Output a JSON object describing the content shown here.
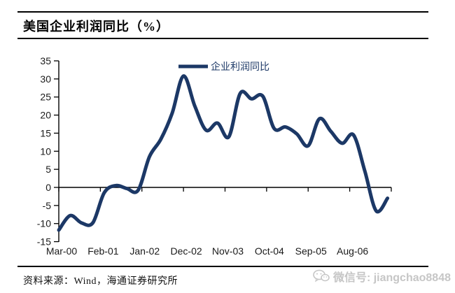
{
  "header": {
    "title": "美国企业利润同比（%）"
  },
  "legend": {
    "label": "企业利润同比"
  },
  "chart_data": {
    "type": "line",
    "title": "美国企业利润同比（%）",
    "xlabel": "",
    "ylabel": "",
    "ylim": [
      -15,
      35
    ],
    "yticks": [
      35,
      30,
      25,
      20,
      15,
      10,
      5,
      0,
      -5,
      -10,
      -15
    ],
    "xtick_labels": [
      "Mar-00",
      "Feb-01",
      "Jan-02",
      "Dec-02",
      "Nov-03",
      "Oct-04",
      "Sep-05",
      "Aug-06"
    ],
    "months_per_xtick": 11,
    "grid": false,
    "legend_position": "top-center",
    "line_color": "#1c3866",
    "axis_color": "#000000",
    "tick_text_color": "#1a1a1a",
    "series": [
      {
        "name": "企业利润同比",
        "x": [
          "Mar-00",
          "Jun-00",
          "Sep-00",
          "Dec-00",
          "Mar-01",
          "Jun-01",
          "Sep-01",
          "Dec-01",
          "Mar-02",
          "Jun-02",
          "Sep-02",
          "Dec-02",
          "Mar-03",
          "Jun-03",
          "Sep-03",
          "Dec-03",
          "Mar-04",
          "Jun-04",
          "Sep-04",
          "Dec-04",
          "Mar-05",
          "Jun-05",
          "Sep-05",
          "Dec-05",
          "Mar-06",
          "Jun-06",
          "Sep-06",
          "Dec-06",
          "Mar-07",
          "Jun-07"
        ],
        "values": [
          -11.8,
          -7.8,
          -9.8,
          -9.8,
          -1.5,
          0.5,
          -0.3,
          -0.8,
          8.5,
          13.3,
          20.5,
          30.8,
          22.5,
          15.8,
          17.8,
          14.0,
          26.0,
          24.5,
          25.2,
          16.3,
          16.7,
          14.8,
          11.5,
          19.0,
          15.5,
          12.2,
          14.5,
          4.5,
          -6.5,
          -3.0
        ]
      }
    ]
  },
  "footer": {
    "source": "资料来源：Wind，海通证券研究所"
  },
  "watermark": {
    "text": "微信号: jiangchao8848"
  }
}
